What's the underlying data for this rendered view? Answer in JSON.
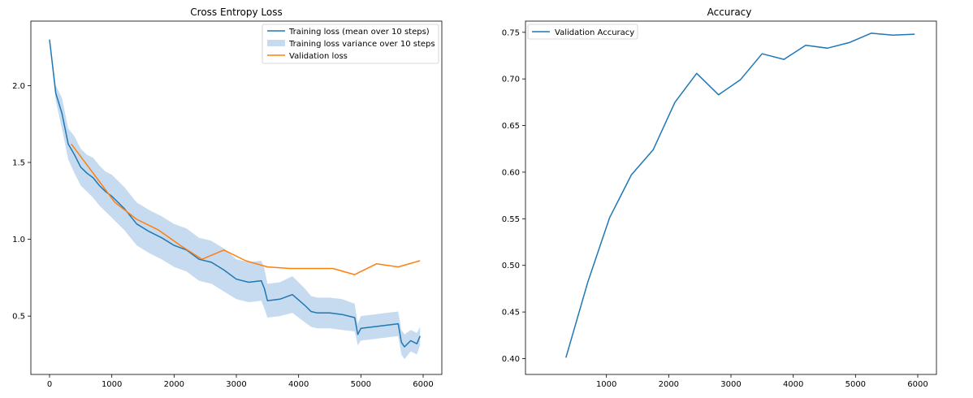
{
  "chart_data": [
    {
      "type": "line",
      "title": "Cross Entropy Loss",
      "xlabel": "",
      "ylabel": "",
      "xlim": [
        -300,
        6300
      ],
      "ylim": [
        0.12,
        2.42
      ],
      "xticks": [
        0,
        1000,
        2000,
        3000,
        4000,
        5000,
        6000
      ],
      "xtick_labels": [
        "0",
        "1000",
        "2000",
        "3000",
        "4000",
        "5000",
        "6000"
      ],
      "yticks": [
        0.5,
        1.0,
        1.5,
        2.0
      ],
      "ytick_labels": [
        "0.5",
        "1.0",
        "1.5",
        "2.0"
      ],
      "grid": false,
      "legend_position": "top-right",
      "colors": {
        "training": "#1f77b4",
        "variance": "#c6dbef",
        "validation": "#ff7f0e"
      },
      "series": [
        {
          "name": "Training loss (mean over 10 steps)",
          "kind": "line",
          "x": [
            0,
            100,
            200,
            300,
            400,
            500,
            600,
            700,
            800,
            900,
            1000,
            1200,
            1400,
            1600,
            1800,
            2000,
            2200,
            2400,
            2600,
            2800,
            3000,
            3200,
            3400,
            3450,
            3500,
            3700,
            3900,
            4100,
            4200,
            4300,
            4500,
            4700,
            4900,
            4950,
            5000,
            5200,
            5400,
            5600,
            5650,
            5700,
            5800,
            5900,
            5950
          ],
          "y": [
            2.3,
            1.95,
            1.82,
            1.62,
            1.55,
            1.47,
            1.43,
            1.4,
            1.35,
            1.31,
            1.28,
            1.2,
            1.1,
            1.05,
            1.01,
            0.96,
            0.93,
            0.87,
            0.85,
            0.8,
            0.74,
            0.72,
            0.73,
            0.68,
            0.6,
            0.61,
            0.64,
            0.57,
            0.53,
            0.52,
            0.52,
            0.51,
            0.49,
            0.38,
            0.42,
            0.43,
            0.44,
            0.45,
            0.33,
            0.3,
            0.34,
            0.32,
            0.37
          ]
        },
        {
          "name": "Training loss variance over 10 steps",
          "kind": "band",
          "x": [
            0,
            100,
            200,
            300,
            400,
            500,
            600,
            700,
            800,
            900,
            1000,
            1200,
            1400,
            1600,
            1800,
            2000,
            2200,
            2400,
            2600,
            2800,
            3000,
            3200,
            3400,
            3450,
            3500,
            3700,
            3900,
            4100,
            4200,
            4300,
            4500,
            4700,
            4900,
            4950,
            5000,
            5200,
            5400,
            5600,
            5650,
            5700,
            5800,
            5900,
            5950
          ],
          "lower": [
            2.29,
            1.9,
            1.72,
            1.52,
            1.43,
            1.35,
            1.31,
            1.27,
            1.22,
            1.18,
            1.14,
            1.06,
            0.96,
            0.91,
            0.87,
            0.82,
            0.79,
            0.73,
            0.71,
            0.66,
            0.61,
            0.59,
            0.6,
            0.55,
            0.49,
            0.5,
            0.52,
            0.46,
            0.43,
            0.42,
            0.42,
            0.41,
            0.4,
            0.31,
            0.34,
            0.35,
            0.36,
            0.37,
            0.25,
            0.22,
            0.27,
            0.25,
            0.31
          ],
          "upper": [
            2.31,
            2.0,
            1.92,
            1.72,
            1.67,
            1.59,
            1.55,
            1.53,
            1.48,
            1.44,
            1.42,
            1.34,
            1.24,
            1.19,
            1.15,
            1.1,
            1.07,
            1.01,
            0.99,
            0.94,
            0.87,
            0.85,
            0.86,
            0.81,
            0.71,
            0.72,
            0.76,
            0.68,
            0.63,
            0.62,
            0.62,
            0.61,
            0.58,
            0.45,
            0.5,
            0.51,
            0.52,
            0.53,
            0.41,
            0.38,
            0.41,
            0.39,
            0.43
          ]
        },
        {
          "name": "Validation loss",
          "kind": "line",
          "x": [
            350,
            700,
            1050,
            1400,
            1750,
            2100,
            2450,
            2800,
            3150,
            3500,
            3850,
            4200,
            4550,
            4900,
            5250,
            5600,
            5950
          ],
          "y": [
            1.62,
            1.43,
            1.24,
            1.13,
            1.06,
            0.96,
            0.87,
            0.93,
            0.86,
            0.82,
            0.81,
            0.81,
            0.81,
            0.77,
            0.84,
            0.82,
            0.86
          ]
        }
      ]
    },
    {
      "type": "line",
      "title": "Accuracy",
      "xlabel": "",
      "ylabel": "",
      "xlim": [
        -300,
        6300
      ],
      "ylim": [
        0.383,
        0.762
      ],
      "xticks": [
        1000,
        2000,
        3000,
        4000,
        5000,
        6000
      ],
      "xtick_labels": [
        "1000",
        "2000",
        "3000",
        "4000",
        "5000",
        "6000"
      ],
      "yticks": [
        0.4,
        0.45,
        0.5,
        0.55,
        0.6,
        0.65,
        0.7,
        0.75
      ],
      "ytick_labels": [
        "0.40",
        "0.45",
        "0.50",
        "0.55",
        "0.60",
        "0.65",
        "0.70",
        "0.75"
      ],
      "grid": false,
      "legend_position": "top-left",
      "colors": {
        "accuracy": "#1f77b4"
      },
      "series": [
        {
          "name": "Validation Accuracy",
          "kind": "line",
          "x": [
            350,
            700,
            1050,
            1400,
            1750,
            2100,
            2450,
            2800,
            3150,
            3500,
            3850,
            4200,
            4550,
            4900,
            5250,
            5600,
            5950
          ],
          "y": [
            0.401,
            0.482,
            0.551,
            0.597,
            0.624,
            0.675,
            0.706,
            0.683,
            0.699,
            0.727,
            0.721,
            0.736,
            0.733,
            0.739,
            0.749,
            0.747,
            0.748
          ]
        }
      ]
    }
  ]
}
